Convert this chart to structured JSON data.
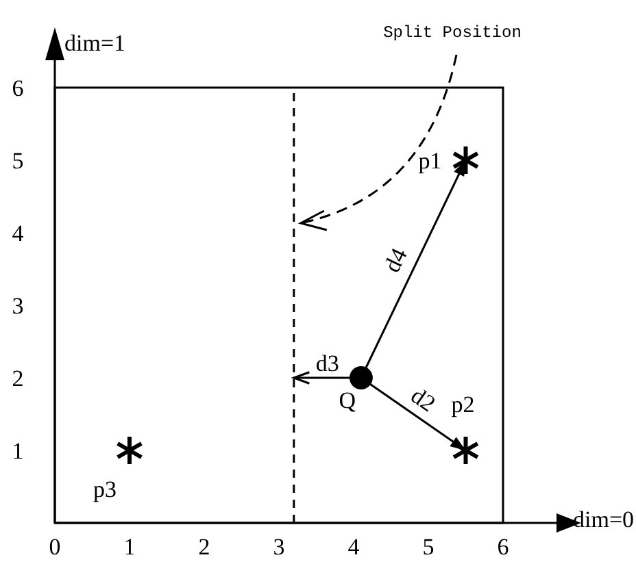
{
  "chart_data": {
    "type": "scatter",
    "xlabel": "dim=0",
    "ylabel": "dim=1",
    "xlim": [
      0,
      6
    ],
    "ylim": [
      0,
      6
    ],
    "xticks": [
      0,
      1,
      2,
      3,
      4,
      5,
      6
    ],
    "yticks": [
      1,
      2,
      3,
      4,
      5,
      6
    ],
    "grid": false,
    "series": [
      {
        "color": "#000000",
        "marker": "cross",
        "x": [
          5.5,
          5.5,
          1
        ],
        "values": [
          5,
          1,
          1
        ]
      },
      {
        "color": "#000000",
        "marker": "circle",
        "x": [
          4.1
        ],
        "values": [
          2
        ]
      }
    ],
    "ref_lines": [
      {
        "axis": "x",
        "value": 3.2,
        "label": "Split Position",
        "line_style": "dashed",
        "color": "#000000"
      }
    ],
    "annotations": [
      {
        "text": "p1",
        "x": 5.5,
        "y": 5
      },
      {
        "text": "p2",
        "x": 5.5,
        "y": 1
      },
      {
        "text": "p3",
        "x": 1,
        "y": 1
      },
      {
        "text": "Q",
        "x": 4.1,
        "y": 2
      },
      "d4",
      {
        "text": "d3",
        "x": 3.2,
        "y": 2
      },
      {
        "text": "d2",
        "x": 5.5,
        "y": 1
      }
    ]
  }
}
